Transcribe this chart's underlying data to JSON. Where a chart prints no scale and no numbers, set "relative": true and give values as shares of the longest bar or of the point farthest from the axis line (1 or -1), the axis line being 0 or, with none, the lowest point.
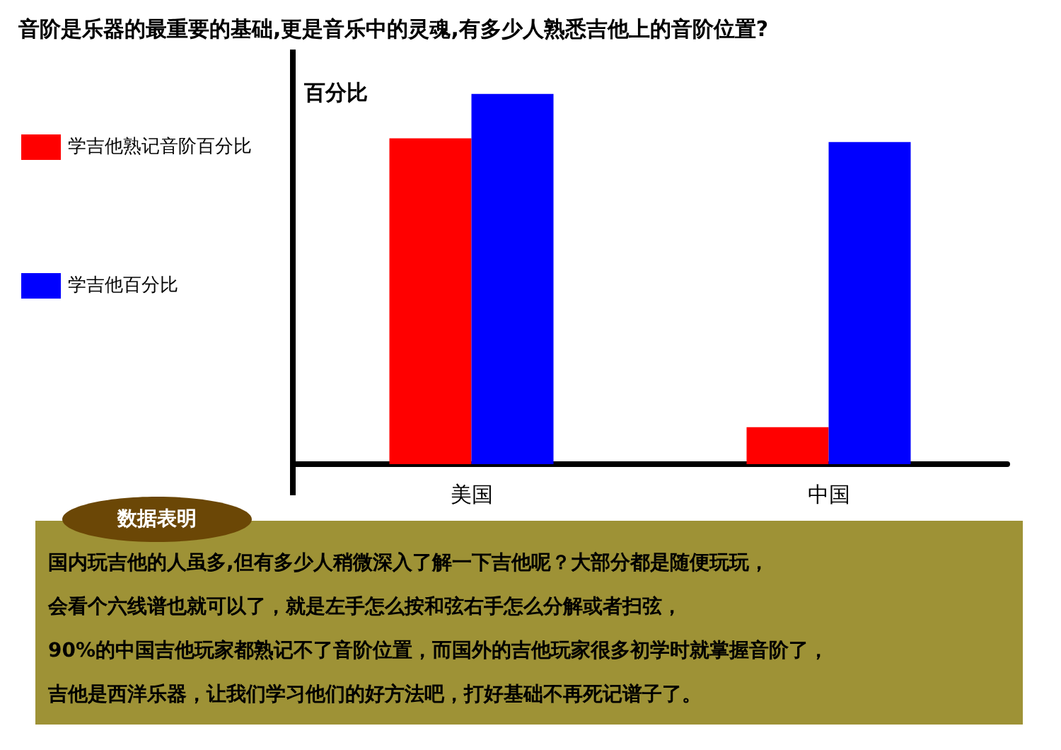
{
  "chart_data": {
    "type": "bar",
    "title": "音阶是乐器的最重要的基础,更是音乐中的灵魂,有多少人熟悉吉他上的音阶位置?",
    "ylabel": "百分比",
    "categories": [
      "美国",
      "中国"
    ],
    "relative": true,
    "legend": "left",
    "series": [
      {
        "name": "学吉他熟记音阶百分比",
        "color": "#ff0000",
        "values": [
          0.88,
          0.1
        ]
      },
      {
        "name": "学吉他百分比",
        "color": "#0000ff",
        "values": [
          1,
          0.87
        ]
      }
    ],
    "annotations": [
      "数据表明",
      "国内玩吉他的人虽多,但有多少人稍微深入了解一下吉他呢？大部分都是随便玩玩，",
      "会看个六线谱也就可以了，就是左手怎么按和弦右手怎么分解或者扫弦，",
      "90%的中国吉他玩家都熟记不了音阶位置，而国外的吉他玩家很多初学时就掌握音阶了，",
      "吉他是西洋乐器，让我们学习他们的好方法吧，打好基础不再死记谱子了。"
    ]
  }
}
